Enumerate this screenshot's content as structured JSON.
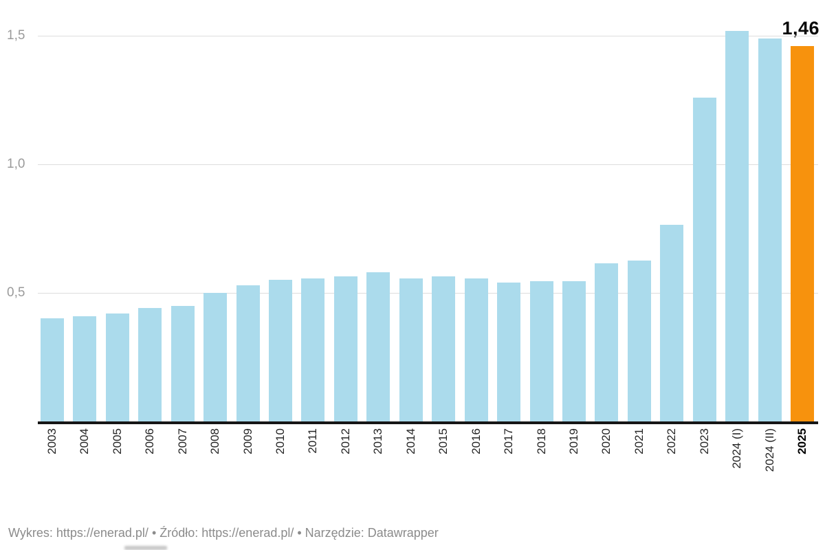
{
  "chart_data": {
    "type": "bar",
    "categories": [
      "2003",
      "2004",
      "2005",
      "2006",
      "2007",
      "2008",
      "2009",
      "2010",
      "2011",
      "2012",
      "2013",
      "2014",
      "2015",
      "2016",
      "2017",
      "2018",
      "2019",
      "2020",
      "2021",
      "2022",
      "2023",
      "2024 (I)",
      "2024 (II)",
      "2025"
    ],
    "values": [
      0.4,
      0.41,
      0.42,
      0.44,
      0.45,
      0.5,
      0.53,
      0.55,
      0.555,
      0.565,
      0.58,
      0.555,
      0.565,
      0.555,
      0.54,
      0.545,
      0.545,
      0.615,
      0.625,
      0.765,
      1.26,
      1.52,
      1.49,
      1.46
    ],
    "highlight_index": 23,
    "annotation": {
      "text": "1,46",
      "value": 1.46,
      "applies_to": "2025"
    },
    "yticks": [
      {
        "label": "1,5",
        "value": 1.5
      },
      {
        "label": "1,0",
        "value": 1.0
      },
      {
        "label": "0,5",
        "value": 0.5
      }
    ],
    "ylim": [
      0,
      1.58
    ],
    "grid": true,
    "legend": "none",
    "xlabel": "",
    "ylabel": "",
    "colors": {
      "bar": "#ABDBEC",
      "highlight": "#F7920D",
      "gridline": "#DDDDDD",
      "axis_line": "#161616",
      "ytick_text": "#9A9A9A",
      "xtick_text": "#242424",
      "annotation_text": "#0A0A0A",
      "footer_text": "#8B8B8B"
    }
  },
  "footer": {
    "parts": [
      {
        "text": "Wykres: "
      },
      {
        "text": "https://enerad.pl/"
      },
      {
        "text": " • Źródło: "
      },
      {
        "text": "https://enerad.pl/"
      },
      {
        "text": " • Narzędzie: "
      },
      {
        "text": "Datawrapper"
      }
    ]
  }
}
